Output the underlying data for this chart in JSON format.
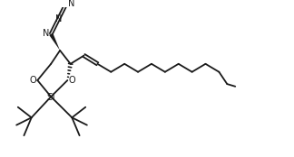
{
  "background_color": "#ffffff",
  "line_color": "#1a1a1a",
  "line_width": 1.3,
  "font_size": 7.0,
  "fig_width": 3.24,
  "fig_height": 1.74,
  "dpi": 100,
  "xlim": [
    0,
    9.5
  ],
  "ylim": [
    0,
    5.0
  ]
}
